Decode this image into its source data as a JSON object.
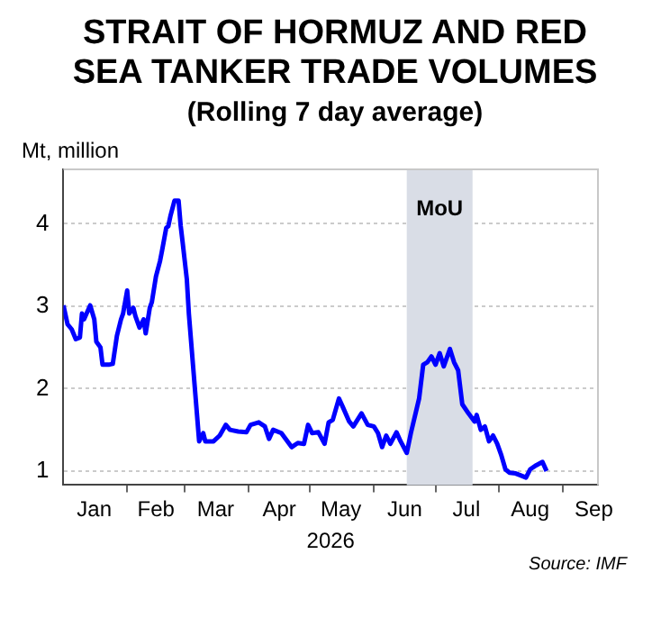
{
  "chart_data": {
    "type": "line",
    "title": "STRAIT OF HORMUZ AND RED SEA TANKER TRADE VOLUMES",
    "subtitle": "(Rolling 7 day average)",
    "ylabel": "Mt, million",
    "xlabel": "2026",
    "annotations": [
      "Source: IMF"
    ],
    "x": [
      "2026-01-01",
      "2026-01-03",
      "2026-01-05",
      "2026-01-07",
      "2026-01-09",
      "2026-01-10",
      "2026-01-11",
      "2026-01-14",
      "2026-01-16",
      "2026-01-17",
      "2026-01-19",
      "2026-01-20",
      "2026-01-23",
      "2026-01-25",
      "2026-01-27",
      "2026-01-29",
      "2026-01-30",
      "2026-02-01",
      "2026-02-02",
      "2026-02-04",
      "2026-02-05",
      "2026-02-07",
      "2026-02-09",
      "2026-02-10",
      "2026-02-12",
      "2026-02-13",
      "2026-02-15",
      "2026-02-17",
      "2026-02-18",
      "2026-02-20",
      "2026-02-21",
      "2026-02-22",
      "2026-02-24",
      "2026-02-26",
      "2026-02-27",
      "2026-02-28",
      "2026-03-02",
      "2026-03-03",
      "2026-03-05",
      "2026-03-07",
      "2026-03-08",
      "2026-03-10",
      "2026-03-11",
      "2026-03-15",
      "2026-03-18",
      "2026-03-21",
      "2026-03-23",
      "2026-03-27",
      "2026-03-31",
      "2026-04-02",
      "2026-04-06",
      "2026-04-09",
      "2026-04-11",
      "2026-04-13",
      "2026-04-17",
      "2026-04-22",
      "2026-04-25",
      "2026-04-28",
      "2026-04-30",
      "2026-05-02",
      "2026-05-05",
      "2026-05-08",
      "2026-05-10",
      "2026-05-12",
      "2026-05-15",
      "2026-05-17",
      "2026-05-20",
      "2026-05-22",
      "2026-05-26",
      "2026-05-29",
      "2026-06-01",
      "2026-06-03",
      "2026-06-05",
      "2026-06-07",
      "2026-06-09",
      "2026-06-12",
      "2026-06-14",
      "2026-06-17",
      "2026-06-19",
      "2026-06-23",
      "2026-06-25",
      "2026-06-27",
      "2026-06-29",
      "2026-07-01",
      "2026-07-03",
      "2026-07-05",
      "2026-07-08",
      "2026-07-10",
      "2026-07-12",
      "2026-07-14",
      "2026-07-17",
      "2026-07-20",
      "2026-07-21",
      "2026-07-23",
      "2026-07-25",
      "2026-07-27",
      "2026-07-29",
      "2026-07-31",
      "2026-08-02",
      "2026-08-04",
      "2026-08-06",
      "2026-08-09",
      "2026-08-11",
      "2026-08-14",
      "2026-08-16",
      "2026-08-19",
      "2026-08-22",
      "2026-08-24"
    ],
    "series": [
      {
        "color": "#0000ff",
        "values": [
          3.01,
          2.78,
          2.72,
          2.6,
          2.62,
          2.91,
          2.84,
          3.01,
          2.84,
          2.57,
          2.5,
          2.29,
          2.29,
          2.3,
          2.64,
          2.84,
          2.91,
          3.19,
          2.91,
          2.98,
          2.88,
          2.74,
          2.84,
          2.67,
          2.98,
          3.05,
          3.36,
          3.55,
          3.68,
          3.95,
          3.97,
          4.09,
          4.28,
          4.28,
          3.98,
          3.77,
          3.33,
          2.91,
          2.29,
          1.67,
          1.36,
          1.46,
          1.36,
          1.36,
          1.43,
          1.56,
          1.5,
          1.48,
          1.47,
          1.56,
          1.59,
          1.54,
          1.39,
          1.5,
          1.46,
          1.29,
          1.34,
          1.33,
          1.56,
          1.46,
          1.47,
          1.33,
          1.59,
          1.62,
          1.88,
          1.77,
          1.6,
          1.54,
          1.7,
          1.56,
          1.54,
          1.46,
          1.29,
          1.43,
          1.33,
          1.47,
          1.36,
          1.22,
          1.46,
          1.88,
          2.29,
          2.32,
          2.39,
          2.29,
          2.43,
          2.27,
          2.48,
          2.32,
          2.22,
          1.81,
          1.7,
          1.6,
          1.68,
          1.5,
          1.54,
          1.36,
          1.43,
          1.33,
          1.19,
          1.02,
          0.98,
          0.97,
          0.95,
          0.92,
          1.02,
          1.07,
          1.11,
          1.0
        ]
      }
    ],
    "xlim": [
      "2026-01-01",
      "2026-09-18"
    ],
    "xticks": [
      {
        "value": "2026-01-16",
        "label": "Jan"
      },
      {
        "value": "2026-02-01",
        "label": null
      },
      {
        "value": "2026-02-15",
        "label": "Feb"
      },
      {
        "value": "2026-03-01",
        "label": null
      },
      {
        "value": "2026-03-16",
        "label": "Mar"
      },
      {
        "value": "2026-04-01",
        "label": null
      },
      {
        "value": "2026-04-16",
        "label": "Apr"
      },
      {
        "value": "2026-05-01",
        "label": null
      },
      {
        "value": "2026-05-16",
        "label": "May"
      },
      {
        "value": "2026-06-01",
        "label": null
      },
      {
        "value": "2026-06-16",
        "label": "Jun"
      },
      {
        "value": "2026-07-01",
        "label": null
      },
      {
        "value": "2026-07-16",
        "label": "Jul"
      },
      {
        "value": "2026-08-01",
        "label": null
      },
      {
        "value": "2026-08-16",
        "label": "Aug"
      },
      {
        "value": "2026-09-01",
        "label": null
      },
      {
        "value": "2026-09-16",
        "label": "Sep"
      }
    ],
    "ylim": [
      0.83,
      4.66
    ],
    "yticks": [
      1,
      2,
      3,
      4
    ],
    "bands": [
      {
        "axis": "x",
        "from": "2026-06-17",
        "to": "2026-07-19",
        "label": "MoU",
        "color": "#d9dde6"
      }
    ],
    "grid": "y",
    "legend": false,
    "marker": "none",
    "line_style": "solid"
  }
}
